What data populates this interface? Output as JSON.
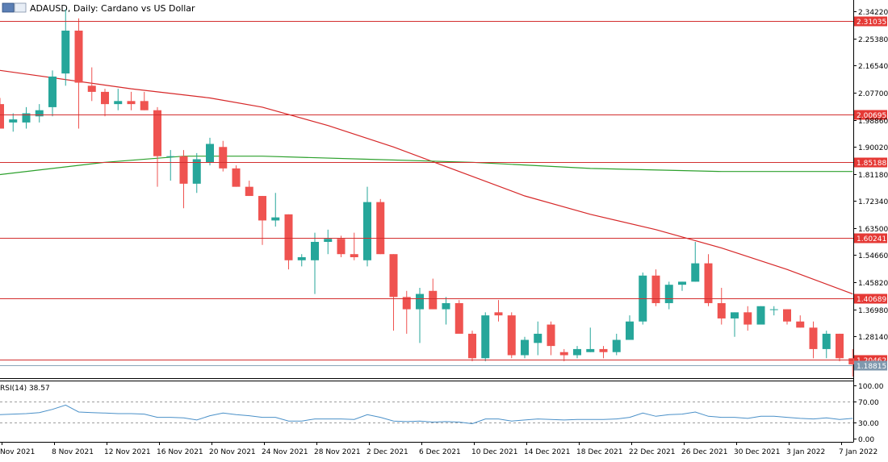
{
  "chart_data": {
    "type": "candlestick",
    "title": "ADAUSD, Daily:  Cardano vs US Dollar",
    "symbol": "ADAUSD",
    "timeframe": "Daily",
    "description": "Cardano vs US Dollar",
    "price_axis": {
      "ticks": [
        "2.34220",
        "2.25380",
        "2.16540",
        "2.07700",
        "1.98860",
        "1.90020",
        "1.81180",
        "1.72340",
        "1.63500",
        "1.54660",
        "1.45820",
        "1.36980",
        "1.28140"
      ],
      "range": [
        1.145,
        2.38
      ]
    },
    "date_labels": [
      "Nov 2021",
      "8 Nov 2021",
      "12 Nov 2021",
      "16 Nov 2021",
      "20 Nov 2021",
      "24 Nov 2021",
      "28 Nov 2021",
      "2 Dec 2021",
      "6 Dec 2021",
      "10 Dec 2021",
      "14 Dec 2021",
      "18 Dec 2021",
      "22 Dec 2021",
      "26 Dec 2021",
      "30 Dec 2021",
      "3 Jan 2022",
      "7 Jan 2022"
    ],
    "horizontal_levels": [
      {
        "value": 2.31035,
        "label": "2.31035"
      },
      {
        "value": 2.00695,
        "label": "2.00695"
      },
      {
        "value": 1.85188,
        "label": "1.85188"
      },
      {
        "value": 1.60241,
        "label": "1.60241"
      },
      {
        "value": 1.40689,
        "label": "1.40689"
      },
      {
        "value": 1.20462,
        "label": "1.20462"
      }
    ],
    "current_price": {
      "value": 1.18815,
      "label": "1.18815"
    },
    "candles": [
      {
        "o": 2.04,
        "h": 2.06,
        "l": 1.96,
        "c": 1.96
      },
      {
        "o": 1.98,
        "h": 2.01,
        "l": 1.95,
        "c": 1.99
      },
      {
        "o": 1.98,
        "h": 2.03,
        "l": 1.96,
        "c": 2.01
      },
      {
        "o": 2.0,
        "h": 2.04,
        "l": 1.98,
        "c": 2.02
      },
      {
        "o": 2.03,
        "h": 2.15,
        "l": 2.0,
        "c": 2.13
      },
      {
        "o": 2.14,
        "h": 2.35,
        "l": 2.1,
        "c": 2.28
      },
      {
        "o": 2.28,
        "h": 2.32,
        "l": 1.96,
        "c": 2.11
      },
      {
        "o": 2.1,
        "h": 2.16,
        "l": 2.05,
        "c": 2.08
      },
      {
        "o": 2.08,
        "h": 2.09,
        "l": 2.0,
        "c": 2.04
      },
      {
        "o": 2.04,
        "h": 2.09,
        "l": 2.02,
        "c": 2.05
      },
      {
        "o": 2.05,
        "h": 2.08,
        "l": 2.02,
        "c": 2.04
      },
      {
        "o": 2.05,
        "h": 2.08,
        "l": 2.02,
        "c": 2.02
      },
      {
        "o": 2.02,
        "h": 2.03,
        "l": 1.77,
        "c": 1.87
      },
      {
        "o": 1.87,
        "h": 1.89,
        "l": 1.79,
        "c": 1.87
      },
      {
        "o": 1.87,
        "h": 1.89,
        "l": 1.7,
        "c": 1.78
      },
      {
        "o": 1.78,
        "h": 1.88,
        "l": 1.75,
        "c": 1.86
      },
      {
        "o": 1.85,
        "h": 1.93,
        "l": 1.84,
        "c": 1.91
      },
      {
        "o": 1.9,
        "h": 1.92,
        "l": 1.82,
        "c": 1.83
      },
      {
        "o": 1.83,
        "h": 1.84,
        "l": 1.77,
        "c": 1.77
      },
      {
        "o": 1.77,
        "h": 1.79,
        "l": 1.74,
        "c": 1.74
      },
      {
        "o": 1.74,
        "h": 1.74,
        "l": 1.58,
        "c": 1.66
      },
      {
        "o": 1.66,
        "h": 1.75,
        "l": 1.64,
        "c": 1.67
      },
      {
        "o": 1.68,
        "h": 1.68,
        "l": 1.5,
        "c": 1.53
      },
      {
        "o": 1.53,
        "h": 1.55,
        "l": 1.51,
        "c": 1.54
      },
      {
        "o": 1.53,
        "h": 1.62,
        "l": 1.42,
        "c": 1.59
      },
      {
        "o": 1.59,
        "h": 1.63,
        "l": 1.55,
        "c": 1.6
      },
      {
        "o": 1.6,
        "h": 1.61,
        "l": 1.54,
        "c": 1.55
      },
      {
        "o": 1.55,
        "h": 1.62,
        "l": 1.53,
        "c": 1.54
      },
      {
        "o": 1.53,
        "h": 1.77,
        "l": 1.51,
        "c": 1.72
      },
      {
        "o": 1.72,
        "h": 1.73,
        "l": 1.55,
        "c": 1.55
      },
      {
        "o": 1.55,
        "h": 1.55,
        "l": 1.3,
        "c": 1.41
      },
      {
        "o": 1.41,
        "h": 1.43,
        "l": 1.29,
        "c": 1.37
      },
      {
        "o": 1.37,
        "h": 1.44,
        "l": 1.26,
        "c": 1.42
      },
      {
        "o": 1.43,
        "h": 1.47,
        "l": 1.37,
        "c": 1.37
      },
      {
        "o": 1.37,
        "h": 1.41,
        "l": 1.32,
        "c": 1.39
      },
      {
        "o": 1.39,
        "h": 1.4,
        "l": 1.3,
        "c": 1.29
      },
      {
        "o": 1.29,
        "h": 1.3,
        "l": 1.2,
        "c": 1.21
      },
      {
        "o": 1.21,
        "h": 1.36,
        "l": 1.2,
        "c": 1.35
      },
      {
        "o": 1.36,
        "h": 1.4,
        "l": 1.33,
        "c": 1.35
      },
      {
        "o": 1.35,
        "h": 1.36,
        "l": 1.21,
        "c": 1.22
      },
      {
        "o": 1.22,
        "h": 1.28,
        "l": 1.21,
        "c": 1.27
      },
      {
        "o": 1.26,
        "h": 1.33,
        "l": 1.22,
        "c": 1.29
      },
      {
        "o": 1.32,
        "h": 1.33,
        "l": 1.22,
        "c": 1.25
      },
      {
        "o": 1.23,
        "h": 1.24,
        "l": 1.2,
        "c": 1.22
      },
      {
        "o": 1.22,
        "h": 1.25,
        "l": 1.21,
        "c": 1.24
      },
      {
        "o": 1.23,
        "h": 1.31,
        "l": 1.23,
        "c": 1.24
      },
      {
        "o": 1.24,
        "h": 1.25,
        "l": 1.21,
        "c": 1.23
      },
      {
        "o": 1.23,
        "h": 1.29,
        "l": 1.22,
        "c": 1.27
      },
      {
        "o": 1.27,
        "h": 1.35,
        "l": 1.27,
        "c": 1.33
      },
      {
        "o": 1.33,
        "h": 1.49,
        "l": 1.32,
        "c": 1.48
      },
      {
        "o": 1.48,
        "h": 1.5,
        "l": 1.38,
        "c": 1.39
      },
      {
        "o": 1.39,
        "h": 1.46,
        "l": 1.37,
        "c": 1.45
      },
      {
        "o": 1.45,
        "h": 1.46,
        "l": 1.43,
        "c": 1.46
      },
      {
        "o": 1.46,
        "h": 1.59,
        "l": 1.46,
        "c": 1.52
      },
      {
        "o": 1.52,
        "h": 1.55,
        "l": 1.38,
        "c": 1.39
      },
      {
        "o": 1.39,
        "h": 1.44,
        "l": 1.32,
        "c": 1.34
      },
      {
        "o": 1.34,
        "h": 1.36,
        "l": 1.28,
        "c": 1.36
      },
      {
        "o": 1.36,
        "h": 1.38,
        "l": 1.3,
        "c": 1.32
      },
      {
        "o": 1.32,
        "h": 1.38,
        "l": 1.32,
        "c": 1.38
      },
      {
        "o": 1.37,
        "h": 1.38,
        "l": 1.35,
        "c": 1.37
      },
      {
        "o": 1.37,
        "h": 1.37,
        "l": 1.32,
        "c": 1.33
      },
      {
        "o": 1.33,
        "h": 1.35,
        "l": 1.31,
        "c": 1.31
      },
      {
        "o": 1.31,
        "h": 1.33,
        "l": 1.21,
        "c": 1.24
      },
      {
        "o": 1.24,
        "h": 1.3,
        "l": 1.21,
        "c": 1.29
      },
      {
        "o": 1.29,
        "h": 1.29,
        "l": 1.2,
        "c": 1.21
      },
      {
        "o": 1.21,
        "h": 1.24,
        "l": 1.15,
        "c": 1.19
      }
    ],
    "moving_averages": [
      {
        "color": "#d62728",
        "points": [
          [
            0,
            2.15
          ],
          [
            10,
            2.09
          ],
          [
            16,
            2.06
          ],
          [
            20,
            2.03
          ],
          [
            25,
            1.97
          ],
          [
            30,
            1.9
          ],
          [
            35,
            1.82
          ],
          [
            40,
            1.74
          ],
          [
            45,
            1.68
          ],
          [
            50,
            1.63
          ],
          [
            55,
            1.57
          ],
          [
            60,
            1.5
          ],
          [
            65,
            1.42
          ]
        ]
      },
      {
        "color": "#2ca02c",
        "points": [
          [
            0,
            1.81
          ],
          [
            8,
            1.85
          ],
          [
            14,
            1.87
          ],
          [
            20,
            1.87
          ],
          [
            28,
            1.86
          ],
          [
            36,
            1.85
          ],
          [
            45,
            1.83
          ],
          [
            55,
            1.82
          ],
          [
            65,
            1.82
          ]
        ]
      }
    ],
    "rsi": {
      "label": "RSI(14) 38.57",
      "ticks": [
        "100.00",
        "70.00",
        "30.00",
        "0.00"
      ],
      "levels": [
        70,
        30
      ],
      "values": [
        45,
        46,
        47,
        49,
        55,
        63,
        50,
        49,
        48,
        47,
        47,
        46,
        40,
        40,
        39,
        35,
        43,
        48,
        45,
        43,
        40,
        40,
        33,
        33,
        37,
        37,
        37,
        36,
        45,
        40,
        33,
        32,
        33,
        31,
        32,
        31,
        28,
        37,
        37,
        33,
        35,
        37,
        36,
        35,
        36,
        36,
        36,
        37,
        40,
        48,
        42,
        45,
        46,
        50,
        42,
        40,
        40,
        38,
        42,
        42,
        40,
        38,
        37,
        39,
        36,
        38
      ]
    }
  },
  "colors": {
    "bull": "#26a69a",
    "bear": "#ef5350",
    "level_line": "#d32f2f",
    "level_label_bg": "#e53935",
    "current_line": "#8aa4b8",
    "current_label_bg": "#7f98ad",
    "axis": "#000000",
    "grid_dash": "#9e9e9e",
    "rsi_line": "#4a90c8"
  }
}
